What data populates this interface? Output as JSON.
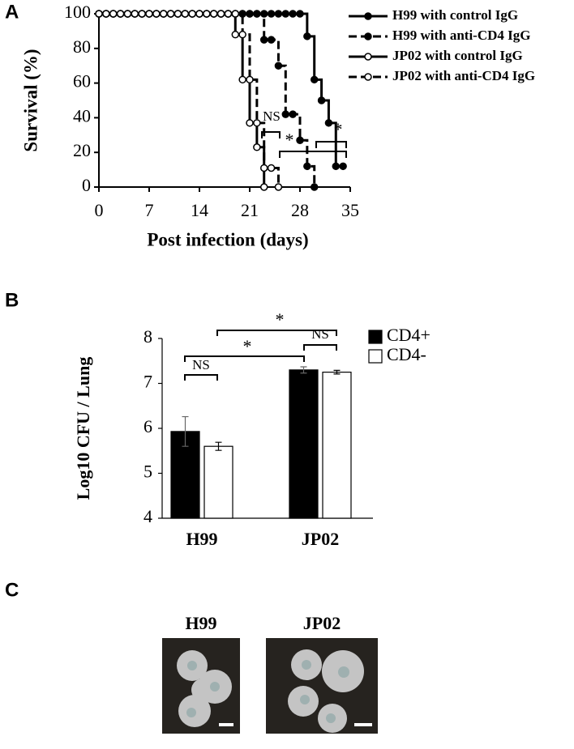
{
  "panel_labels": [
    "A",
    "B",
    "C"
  ],
  "chart_data": [
    {
      "type": "line",
      "step": true,
      "xlabel": "Post infection (days)",
      "ylabel": "Survival (%)",
      "xlim": [
        0,
        35
      ],
      "xticks": [
        0,
        7,
        14,
        21,
        28,
        35
      ],
      "ylim": [
        0,
        100
      ],
      "yticks": [
        0,
        20,
        40,
        60,
        80,
        100
      ],
      "legend": "upper right",
      "series": [
        {
          "name": "H99 with control IgG",
          "color": "#000000",
          "linestyle": "solid",
          "marker": "filled",
          "x": [
            0,
            1,
            2,
            3,
            4,
            5,
            6,
            7,
            8,
            9,
            10,
            11,
            12,
            13,
            14,
            15,
            16,
            17,
            18,
            19,
            20,
            21,
            22,
            23,
            24,
            25,
            26,
            27,
            28,
            29,
            30,
            31,
            32,
            33,
            34
          ],
          "values": [
            100,
            100,
            100,
            100,
            100,
            100,
            100,
            100,
            100,
            100,
            100,
            100,
            100,
            100,
            100,
            100,
            100,
            100,
            100,
            100,
            100,
            100,
            100,
            100,
            100,
            100,
            100,
            100,
            100,
            87,
            62,
            50,
            37,
            12,
            12
          ]
        },
        {
          "name": "H99 with anti-CD4 IgG",
          "color": "#000000",
          "linestyle": "dashed",
          "marker": "filled",
          "x": [
            0,
            1,
            2,
            3,
            4,
            5,
            6,
            7,
            8,
            9,
            10,
            11,
            12,
            13,
            14,
            15,
            16,
            17,
            18,
            19,
            20,
            21,
            22,
            23,
            24,
            25,
            26,
            27,
            28,
            29,
            30
          ],
          "values": [
            100,
            100,
            100,
            100,
            100,
            100,
            100,
            100,
            100,
            100,
            100,
            100,
            100,
            100,
            100,
            100,
            100,
            100,
            100,
            100,
            100,
            100,
            100,
            85,
            85,
            70,
            42,
            42,
            27,
            12,
            0
          ]
        },
        {
          "name": "JP02 with control IgG",
          "color": "#000000",
          "linestyle": "solid",
          "marker": "open",
          "x": [
            0,
            1,
            2,
            3,
            4,
            5,
            6,
            7,
            8,
            9,
            10,
            11,
            12,
            13,
            14,
            15,
            16,
            17,
            18,
            19,
            20,
            21,
            22,
            23
          ],
          "values": [
            100,
            100,
            100,
            100,
            100,
            100,
            100,
            100,
            100,
            100,
            100,
            100,
            100,
            100,
            100,
            100,
            100,
            100,
            100,
            88,
            62,
            37,
            23,
            0
          ]
        },
        {
          "name": "JP02 with anti-CD4 IgG",
          "color": "#000000",
          "linestyle": "dashed",
          "marker": "open",
          "x": [
            0,
            1,
            2,
            3,
            4,
            5,
            6,
            7,
            8,
            9,
            10,
            11,
            12,
            13,
            14,
            15,
            16,
            17,
            18,
            19,
            20,
            21,
            22,
            23,
            24,
            25
          ],
          "values": [
            100,
            100,
            100,
            100,
            100,
            100,
            100,
            100,
            100,
            100,
            100,
            100,
            100,
            100,
            100,
            100,
            100,
            100,
            100,
            100,
            88,
            62,
            37,
            11,
            11,
            0
          ]
        }
      ],
      "annotations": [
        "NS",
        "*",
        "*"
      ]
    },
    {
      "type": "bar",
      "ylabel": "Log10 CFU / Lung",
      "categories": [
        "H99",
        "JP02"
      ],
      "ylim": [
        4,
        8
      ],
      "yticks": [
        4,
        5,
        6,
        7,
        8
      ],
      "legend": "upper right",
      "series": [
        {
          "name": "CD4+",
          "color": "#000000",
          "values": [
            5.93,
            7.3
          ],
          "errors": [
            0.33,
            0.07
          ]
        },
        {
          "name": "CD4-",
          "color": "#ffffff",
          "values": [
            5.6,
            7.25
          ],
          "errors": [
            0.09,
            0.04
          ]
        }
      ],
      "annotations": [
        "NS",
        "*",
        "*",
        "NS"
      ]
    }
  ],
  "images": {
    "labels": [
      "H99",
      "JP02"
    ]
  }
}
